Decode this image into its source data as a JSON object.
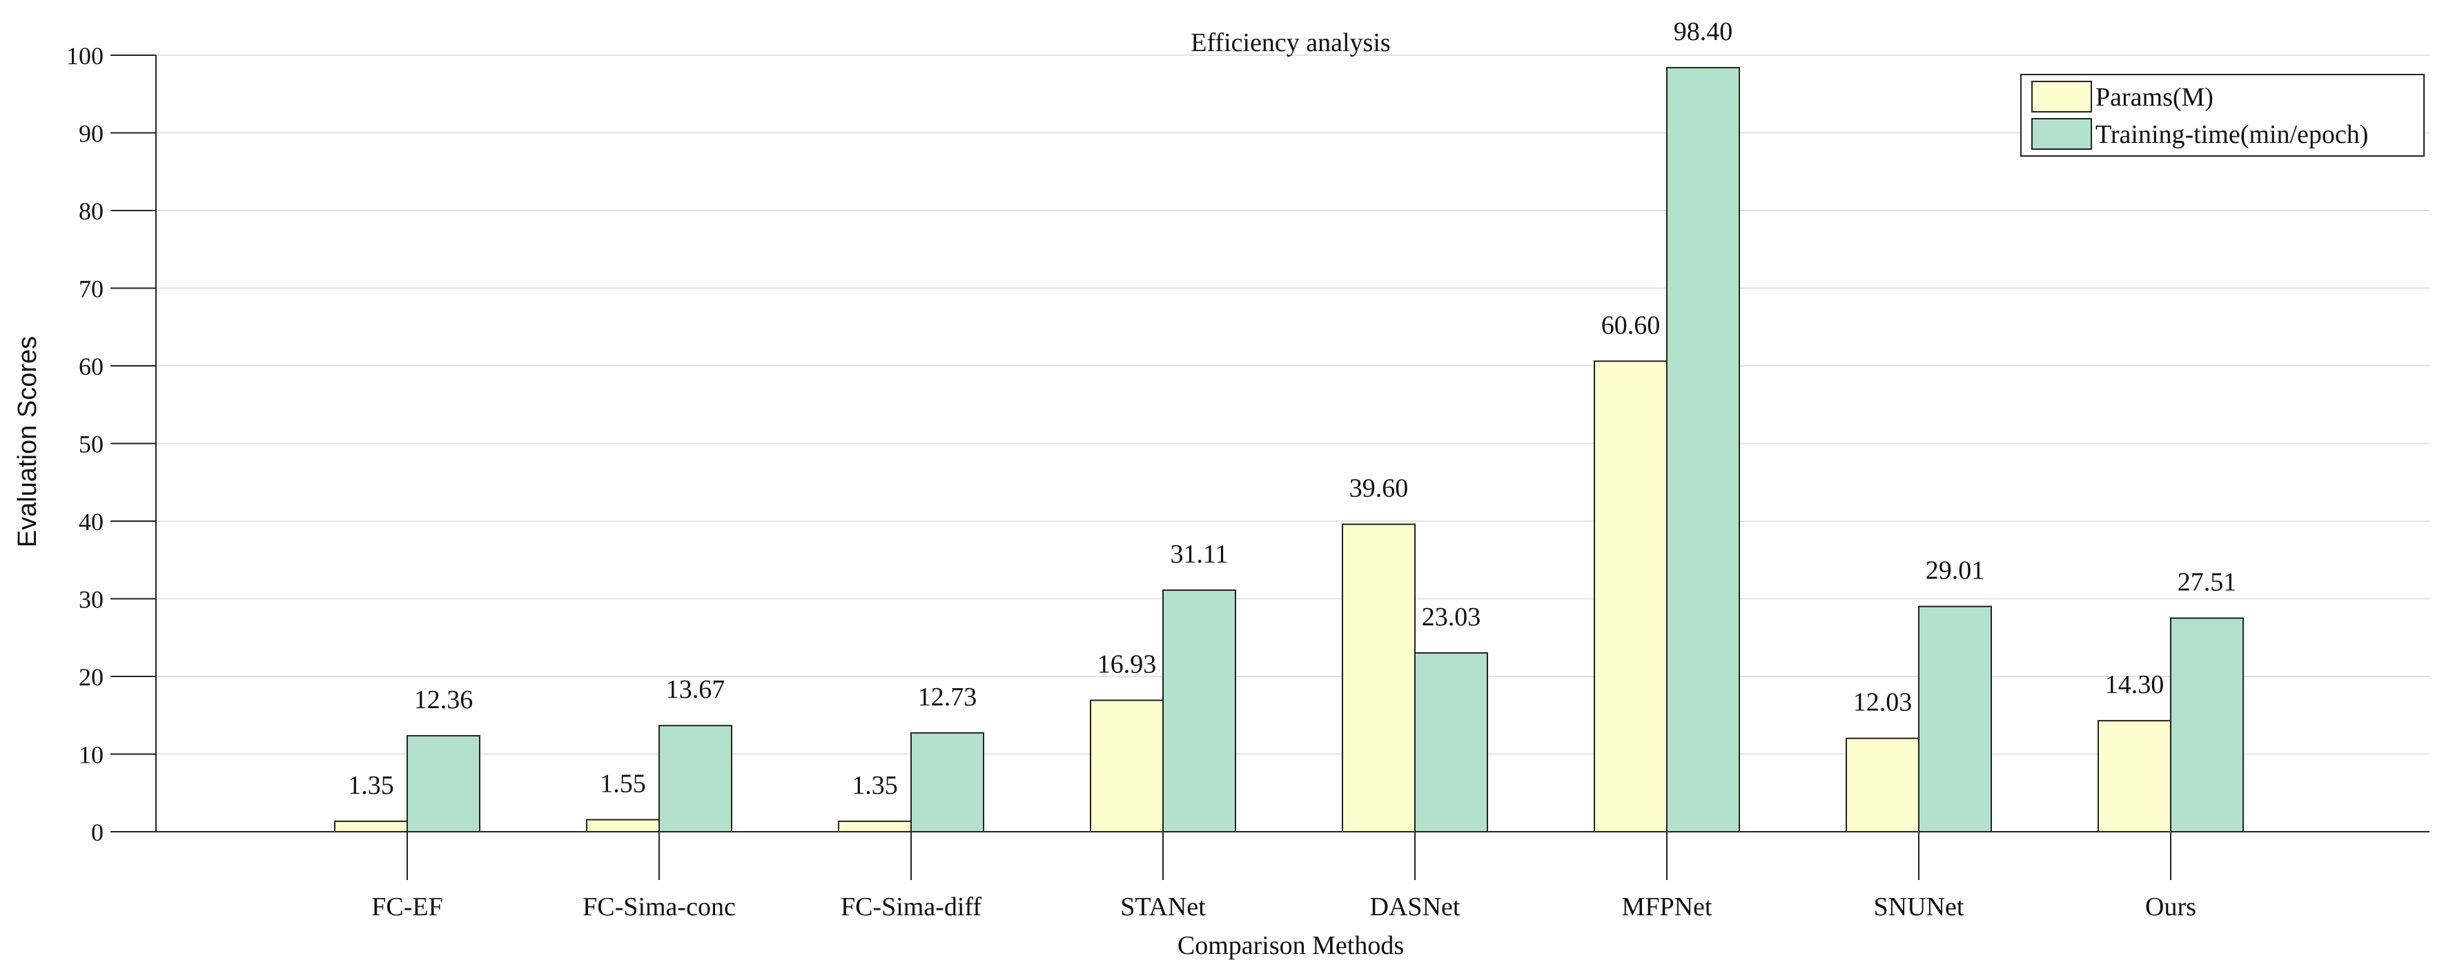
{
  "chart_data": {
    "type": "bar",
    "title": "Efficiency analysis",
    "xlabel": "Comparison Methods",
    "ylabel": "Evaluation Scores",
    "ylim": [
      0,
      100
    ],
    "yticks": [
      0,
      10,
      20,
      30,
      40,
      50,
      60,
      70,
      80,
      90,
      100
    ],
    "grid": true,
    "legend_position": "top-right",
    "categories": [
      "FC-EF",
      "FC-Sima-conc",
      "FC-Sima-diff",
      "STANet",
      "DASNet",
      "MFPNet",
      "SNUNet",
      "Ours"
    ],
    "series": [
      {
        "name": "Params(M)",
        "color": "#fdfdcf",
        "values": [
          1.35,
          1.55,
          1.35,
          16.93,
          39.6,
          60.6,
          12.03,
          14.3
        ],
        "labels": [
          "1.35",
          "1.55",
          "1.35",
          "16.93",
          "39.60",
          "60.60",
          "12.03",
          "14.30"
        ]
      },
      {
        "name": "Training-time(min/epoch)",
        "color": "#b4e1cc",
        "values": [
          12.36,
          13.67,
          12.73,
          31.11,
          23.03,
          98.4,
          29.01,
          27.51
        ],
        "labels": [
          "12.36",
          "13.67",
          "12.73",
          "31.11",
          "23.03",
          "98.40",
          "29.01",
          "27.51"
        ]
      }
    ]
  }
}
